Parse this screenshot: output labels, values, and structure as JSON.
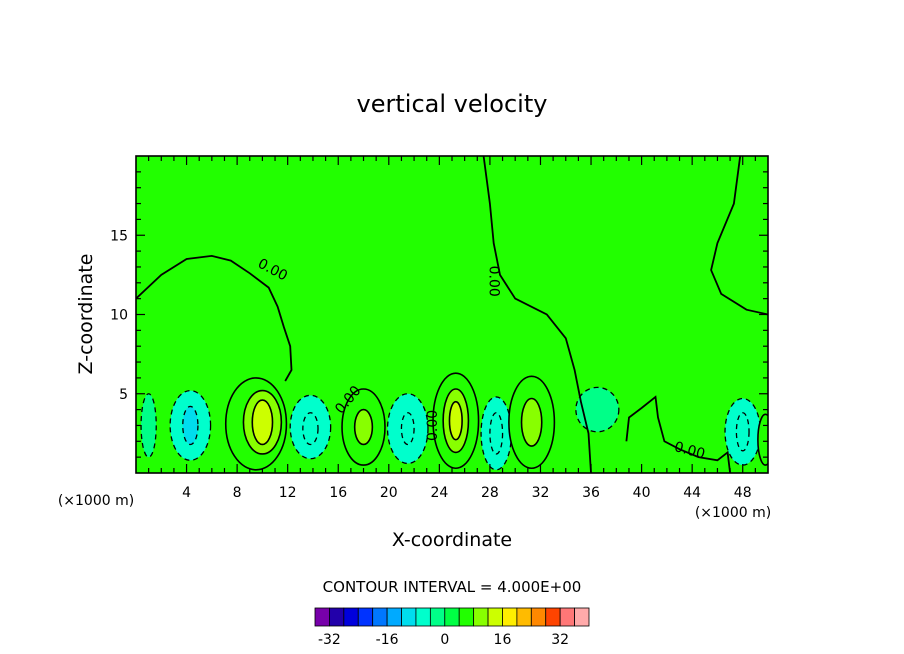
{
  "chart_data": {
    "type": "contour",
    "title": "vertical velocity",
    "xlabel": "X-coordinate",
    "ylabel": "Z-coordinate",
    "x_unit_left": "(×1000 m)",
    "x_unit_right": "(×1000 m)",
    "xlim": [
      0,
      50
    ],
    "ylim": [
      0,
      20
    ],
    "x_ticks": [
      4,
      8,
      12,
      16,
      20,
      24,
      28,
      32,
      36,
      40,
      44,
      48
    ],
    "y_ticks": [
      5,
      10,
      15
    ],
    "contour_interval_text": "CONTOUR INTERVAL = 4.000E+00",
    "contour_interval": 4,
    "zero_contour_label": "0.00",
    "background_value": 0,
    "background_color": "#22ff00",
    "colorbar": {
      "tick_labels": [
        "-32",
        "-16",
        "0",
        "16",
        "32"
      ],
      "tick_values": [
        -32,
        -16,
        0,
        16,
        32
      ],
      "levels": [
        -36,
        -32,
        -28,
        -24,
        -20,
        -16,
        -12,
        -8,
        -4,
        0,
        4,
        8,
        12,
        16,
        20,
        24,
        28,
        32,
        36
      ],
      "colors": [
        "#7700aa",
        "#2200aa",
        "#0000dd",
        "#0033ff",
        "#0077ff",
        "#00aaff",
        "#00ddee",
        "#00ffcc",
        "#00ff88",
        "#00ff44",
        "#22ff00",
        "#88ff00",
        "#ccff00",
        "#ffee00",
        "#ffbb00",
        "#ff8800",
        "#ff4400",
        "#ff7777",
        "#ffaaaa"
      ]
    },
    "cells": [
      {
        "x": 1.0,
        "z": 3.0,
        "rx": 0.6,
        "rz": 2.0,
        "w": -4
      },
      {
        "x": 4.3,
        "z": 3.0,
        "rx": 1.6,
        "rz": 2.2,
        "w": -6
      },
      {
        "x": 4.3,
        "z": 3.0,
        "rx": 0.6,
        "rz": 1.2,
        "w": -9
      },
      {
        "x": 9.5,
        "z": 3.1,
        "rx": 2.4,
        "rz": 2.9,
        "w": 4
      },
      {
        "x": 10.0,
        "z": 3.2,
        "rx": 1.5,
        "rz": 2.0,
        "w": 9
      },
      {
        "x": 10.0,
        "z": 3.2,
        "rx": 0.8,
        "rz": 1.4,
        "w": 12
      },
      {
        "x": 13.8,
        "z": 2.9,
        "rx": 1.6,
        "rz": 2.0,
        "w": -5
      },
      {
        "x": 13.8,
        "z": 2.8,
        "rx": 0.6,
        "rz": 1.0,
        "w": -8
      },
      {
        "x": 18.0,
        "z": 2.9,
        "rx": 1.7,
        "rz": 2.4,
        "w": 6
      },
      {
        "x": 18.0,
        "z": 2.9,
        "rx": 0.7,
        "rz": 1.1,
        "w": 9
      },
      {
        "x": 21.5,
        "z": 2.8,
        "rx": 1.6,
        "rz": 2.2,
        "w": -5
      },
      {
        "x": 21.5,
        "z": 2.8,
        "rx": 0.5,
        "rz": 1.0,
        "w": -8
      },
      {
        "x": 25.3,
        "z": 3.3,
        "rx": 1.8,
        "rz": 3.0,
        "w": 5
      },
      {
        "x": 25.3,
        "z": 3.3,
        "rx": 1.0,
        "rz": 2.0,
        "w": 11
      },
      {
        "x": 25.3,
        "z": 3.3,
        "rx": 0.5,
        "rz": 1.2,
        "w": 15
      },
      {
        "x": 28.5,
        "z": 2.5,
        "rx": 1.2,
        "rz": 2.3,
        "w": -5
      },
      {
        "x": 28.5,
        "z": 2.5,
        "rx": 0.5,
        "rz": 1.3,
        "w": -8
      },
      {
        "x": 31.3,
        "z": 3.2,
        "rx": 1.8,
        "rz": 2.9,
        "w": 4
      },
      {
        "x": 31.3,
        "z": 3.2,
        "rx": 0.8,
        "rz": 1.5,
        "w": 9
      },
      {
        "x": 36.5,
        "z": 4.0,
        "rx": 1.7,
        "rz": 1.4,
        "w": -4
      },
      {
        "x": 48.0,
        "z": 2.6,
        "rx": 1.4,
        "rz": 2.1,
        "w": -5
      },
      {
        "x": 48.0,
        "z": 2.6,
        "rx": 0.5,
        "rz": 1.2,
        "w": -8
      },
      {
        "x": 49.8,
        "z": 2.1,
        "rx": 0.6,
        "rz": 1.6,
        "w": 5
      }
    ],
    "zero_contours": [
      {
        "name": "upper-left-zero-contour",
        "points": [
          [
            0,
            11
          ],
          [
            2,
            12.5
          ],
          [
            4,
            13.5
          ],
          [
            6,
            13.7
          ],
          [
            7.5,
            13.4
          ],
          [
            9,
            12.6
          ],
          [
            10.5,
            11.7
          ],
          [
            11.2,
            10.5
          ],
          [
            11.7,
            9.2
          ],
          [
            12.2,
            8
          ],
          [
            12.3,
            6.5
          ],
          [
            11.8,
            5.8
          ]
        ]
      },
      {
        "name": "center-zero-contour",
        "points": [
          [
            27.5,
            20
          ],
          [
            28,
            17
          ],
          [
            28.3,
            14.5
          ],
          [
            28.8,
            12.5
          ],
          [
            30,
            11
          ],
          [
            32.5,
            10
          ],
          [
            34,
            8.5
          ],
          [
            34.7,
            6.5
          ],
          [
            35.2,
            4.5
          ],
          [
            35.8,
            2.5
          ],
          [
            36,
            0
          ]
        ]
      },
      {
        "name": "right-zero-contour",
        "points": [
          [
            47.8,
            20
          ],
          [
            47.3,
            17
          ],
          [
            46,
            14.5
          ],
          [
            45.5,
            12.8
          ],
          [
            46.3,
            11.3
          ],
          [
            48.3,
            10.3
          ],
          [
            50,
            10
          ]
        ]
      },
      {
        "name": "lower-right-zero-contour",
        "points": [
          [
            38.8,
            2
          ],
          [
            39,
            3.5
          ],
          [
            40,
            4.1
          ],
          [
            41.1,
            4.8
          ],
          [
            41.3,
            3.5
          ],
          [
            41.8,
            2
          ],
          [
            43,
            1.5
          ],
          [
            44.5,
            1
          ],
          [
            46,
            0.8
          ],
          [
            46.8,
            1.3
          ],
          [
            47,
            0
          ]
        ]
      }
    ]
  }
}
